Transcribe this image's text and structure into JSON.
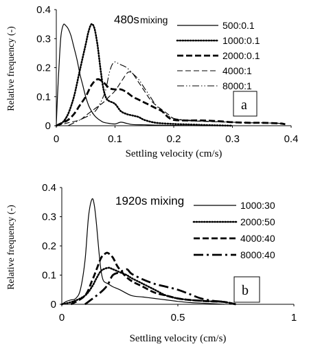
{
  "chart_data": [
    {
      "type": "line",
      "id": "a",
      "annotation_main": "480s",
      "annotation_sub": "mixing",
      "panel_label": "a",
      "xlabel": "Settling velocity  (cm/s)",
      "ylabel": "Relative frequency (-)",
      "xlim": [
        0,
        0.4
      ],
      "ylim": [
        0,
        0.4
      ],
      "xticks": [
        "0",
        "0.1",
        "0.2",
        "0.3",
        "0.4"
      ],
      "yticks": [
        "0",
        "0.1",
        "0.2",
        "0.3",
        "0.4"
      ],
      "legend_position": "top-right",
      "series": [
        {
          "name": "500:0.1",
          "style": "solid",
          "x": [
            0,
            0.002,
            0.005,
            0.008,
            0.012,
            0.016,
            0.02,
            0.025,
            0.03,
            0.035,
            0.04,
            0.045,
            0.05,
            0.055,
            0.06,
            0.065,
            0.07,
            0.075,
            0.08,
            0.09,
            0.1,
            0.11,
            0.12,
            0.13,
            0.15,
            0.17,
            0.2,
            0.25,
            0.3
          ],
          "y": [
            0.005,
            0.1,
            0.22,
            0.31,
            0.348,
            0.345,
            0.335,
            0.31,
            0.27,
            0.23,
            0.18,
            0.14,
            0.1,
            0.07,
            0.05,
            0.035,
            0.025,
            0.018,
            0.012,
            0.008,
            0.006,
            0.012,
            0.008,
            0.004,
            0.003,
            0.002,
            0.001,
            0.0,
            0.0
          ]
        },
        {
          "name": "1000:0.1",
          "style": "dotted",
          "x": [
            0,
            0.01,
            0.02,
            0.03,
            0.04,
            0.05,
            0.055,
            0.06,
            0.065,
            0.07,
            0.075,
            0.08,
            0.085,
            0.09,
            0.1,
            0.11,
            0.12,
            0.13,
            0.14,
            0.15,
            0.17,
            0.2,
            0.23,
            0.26,
            0.3
          ],
          "y": [
            0.0,
            0.01,
            0.04,
            0.1,
            0.19,
            0.28,
            0.325,
            0.35,
            0.335,
            0.28,
            0.2,
            0.13,
            0.095,
            0.085,
            0.075,
            0.05,
            0.04,
            0.035,
            0.03,
            0.02,
            0.01,
            0.006,
            0.004,
            0.002,
            0.0
          ]
        },
        {
          "name": "2000:0.1",
          "style": "dashed-thick",
          "x": [
            0,
            0.01,
            0.02,
            0.03,
            0.04,
            0.05,
            0.06,
            0.07,
            0.08,
            0.09,
            0.1,
            0.11,
            0.12,
            0.13,
            0.14,
            0.15,
            0.16,
            0.17,
            0.18,
            0.19,
            0.2,
            0.22,
            0.25,
            0.28,
            0.3,
            0.33,
            0.35,
            0.38,
            0.39
          ],
          "y": [
            0.0,
            0.01,
            0.02,
            0.04,
            0.07,
            0.1,
            0.14,
            0.16,
            0.15,
            0.13,
            0.125,
            0.125,
            0.115,
            0.1,
            0.09,
            0.08,
            0.07,
            0.06,
            0.05,
            0.03,
            0.02,
            0.018,
            0.018,
            0.015,
            0.012,
            0.01,
            0.01,
            0.008,
            0.005
          ]
        },
        {
          "name": "4000:1",
          "style": "dashed-thin",
          "x": [
            0,
            0.02,
            0.04,
            0.05,
            0.06,
            0.07,
            0.08,
            0.09,
            0.1,
            0.11,
            0.12,
            0.125,
            0.13,
            0.14,
            0.15,
            0.16,
            0.17,
            0.18,
            0.19,
            0.2,
            0.22,
            0.25,
            0.28,
            0.3,
            0.33,
            0.35,
            0.38,
            0.39
          ],
          "y": [
            0.0,
            0.01,
            0.02,
            0.035,
            0.05,
            0.065,
            0.08,
            0.1,
            0.12,
            0.15,
            0.18,
            0.185,
            0.18,
            0.15,
            0.12,
            0.09,
            0.07,
            0.055,
            0.04,
            0.025,
            0.018,
            0.015,
            0.013,
            0.012,
            0.01,
            0.01,
            0.008,
            0.005
          ]
        },
        {
          "name": "8000:1",
          "style": "dashdotdot",
          "x": [
            0.02,
            0.04,
            0.06,
            0.07,
            0.08,
            0.085,
            0.09,
            0.095,
            0.1,
            0.105,
            0.11,
            0.12,
            0.13,
            0.14,
            0.15,
            0.16,
            0.17,
            0.18,
            0.19,
            0.2,
            0.22,
            0.25,
            0.28,
            0.3,
            0.33,
            0.35,
            0.38,
            0.39
          ],
          "y": [
            0.0,
            0.02,
            0.04,
            0.06,
            0.1,
            0.13,
            0.18,
            0.21,
            0.22,
            0.215,
            0.21,
            0.2,
            0.18,
            0.16,
            0.13,
            0.1,
            0.07,
            0.05,
            0.035,
            0.025,
            0.02,
            0.016,
            0.014,
            0.012,
            0.01,
            0.01,
            0.008,
            0.005
          ]
        }
      ]
    },
    {
      "type": "line",
      "id": "b",
      "annotation": "1920s mixing",
      "panel_label": "b",
      "xlabel": "Settling velocity  (cm/s)",
      "ylabel": "Relative frequency (-)",
      "xlim": [
        0,
        1
      ],
      "ylim": [
        0,
        0.4
      ],
      "xticks": [
        "0",
        "0.5",
        "1"
      ],
      "yticks": [
        "0",
        "0.1",
        "0.2",
        "0.3",
        "0.4"
      ],
      "legend_position": "top-right",
      "series": [
        {
          "name": "1000:30",
          "style": "solid",
          "x": [
            0,
            0.02,
            0.04,
            0.06,
            0.08,
            0.1,
            0.115,
            0.13,
            0.14,
            0.15,
            0.16,
            0.17,
            0.18,
            0.2,
            0.22,
            0.25,
            0.3,
            0.35,
            0.4,
            0.45,
            0.5,
            0.55,
            0.6,
            0.7
          ],
          "y": [
            0.0,
            0.01,
            0.015,
            0.02,
            0.05,
            0.15,
            0.3,
            0.36,
            0.34,
            0.27,
            0.18,
            0.11,
            0.08,
            0.07,
            0.06,
            0.05,
            0.03,
            0.025,
            0.02,
            0.015,
            0.01,
            0.006,
            0.004,
            0.0
          ]
        },
        {
          "name": "2000:50",
          "style": "dotted",
          "x": [
            0,
            0.05,
            0.1,
            0.13,
            0.15,
            0.17,
            0.2,
            0.22,
            0.25,
            0.28,
            0.3,
            0.35,
            0.4,
            0.45,
            0.5,
            0.55,
            0.6,
            0.65,
            0.7,
            0.75
          ],
          "y": [
            0.0,
            0.01,
            0.03,
            0.06,
            0.09,
            0.115,
            0.125,
            0.12,
            0.11,
            0.1,
            0.09,
            0.07,
            0.05,
            0.03,
            0.02,
            0.015,
            0.012,
            0.01,
            0.008,
            0.0
          ]
        },
        {
          "name": "4000:40",
          "style": "dashed-thick",
          "x": [
            0.04,
            0.1,
            0.13,
            0.15,
            0.17,
            0.19,
            0.2,
            0.22,
            0.24,
            0.27,
            0.3,
            0.35,
            0.4,
            0.45,
            0.5,
            0.55,
            0.6,
            0.65,
            0.7,
            0.75
          ],
          "y": [
            0.0,
            0.03,
            0.08,
            0.12,
            0.16,
            0.175,
            0.175,
            0.16,
            0.13,
            0.1,
            0.08,
            0.06,
            0.04,
            0.03,
            0.02,
            0.015,
            0.012,
            0.01,
            0.008,
            0.0
          ]
        },
        {
          "name": "8000:40",
          "style": "dashdot-thick",
          "x": [
            0.1,
            0.15,
            0.18,
            0.2,
            0.22,
            0.25,
            0.28,
            0.3,
            0.35,
            0.4,
            0.45,
            0.5,
            0.55,
            0.6,
            0.65,
            0.7,
            0.75
          ],
          "y": [
            0.0,
            0.03,
            0.05,
            0.07,
            0.1,
            0.11,
            0.12,
            0.105,
            0.085,
            0.07,
            0.06,
            0.05,
            0.035,
            0.02,
            0.012,
            0.008,
            0.0
          ]
        }
      ]
    }
  ]
}
